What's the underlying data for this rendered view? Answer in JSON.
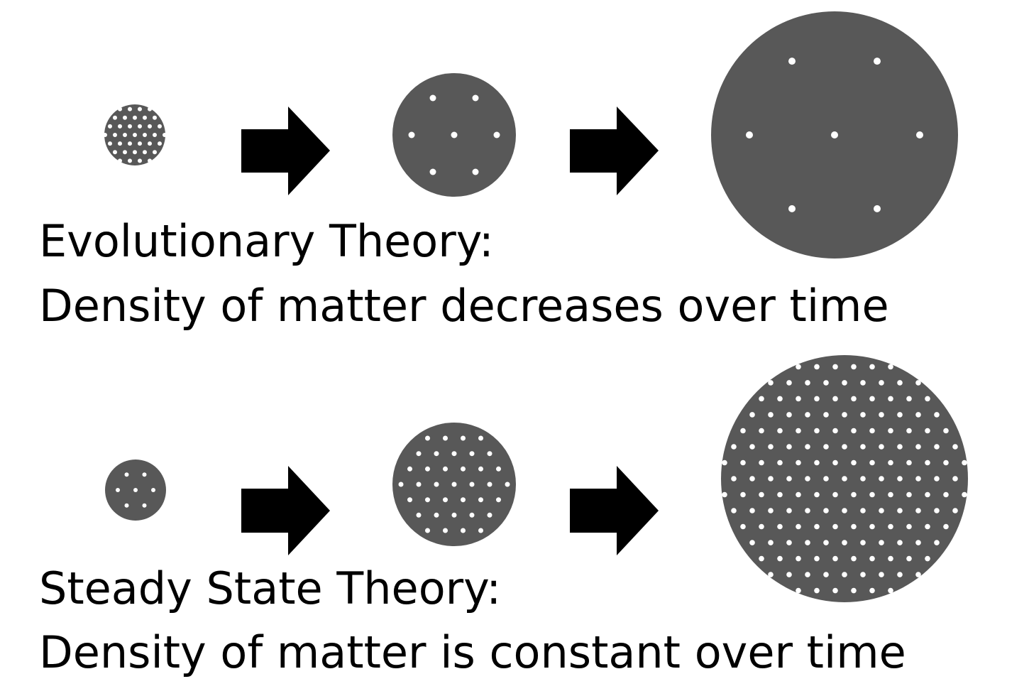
{
  "colors": {
    "disk": "#585858",
    "particle": "#ffffff",
    "arrow": "#000000",
    "text": "#000000"
  },
  "evolutionary": {
    "title": "Evolutionary Theory:",
    "description": "Density of matter decreases over time"
  },
  "steady_state": {
    "title": "Steady State Theory:",
    "description": "Density of matter is constant over time"
  }
}
